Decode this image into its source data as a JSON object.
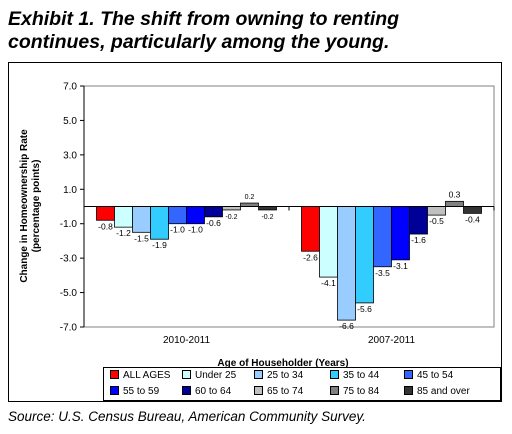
{
  "title_line1": "Exhibit 1. The shift from owning to renting",
  "title_line2": "continues, particularly among the young.",
  "source": "Source: U.S. Census Bureau, American Community Survey.",
  "chart_data": {
    "type": "bar",
    "ylabel": "Change in Homeownership Rate (percentage points)",
    "ylabel_line1": "Change in Homeownership Rate",
    "ylabel_line2": "(percentage points)",
    "xlabel": "Age of Householder (Years)",
    "categories": [
      "2010-2011",
      "2007-2011"
    ],
    "y_ticks": [
      "7.0",
      "5.0",
      "3.0",
      "1.0",
      "-1.0",
      "-3.0",
      "-5.0",
      "-7.0"
    ],
    "ylim": [
      -7.0,
      7.0
    ],
    "grid": false,
    "legend_position": "bottom",
    "series": [
      {
        "name": "ALL AGES",
        "color": "#ff0000",
        "values": [
          -0.8,
          -2.6
        ],
        "labels": [
          "-0.8",
          "-2.6"
        ]
      },
      {
        "name": "Under 25",
        "color": "#ccffff",
        "values": [
          -1.2,
          -4.1
        ],
        "labels": [
          "-1.2",
          "-4.1"
        ]
      },
      {
        "name": "25 to 34",
        "color": "#99ccff",
        "values": [
          -1.5,
          -6.6
        ],
        "labels": [
          "-1.5",
          "-6.6"
        ]
      },
      {
        "name": "35 to 44",
        "color": "#33ccff",
        "values": [
          -1.9,
          -5.6
        ],
        "labels": [
          "-1.9",
          "-5.6"
        ]
      },
      {
        "name": "45 to 54",
        "color": "#3366ff",
        "values": [
          -1.0,
          -3.5
        ],
        "labels": [
          "-1.0",
          "-3.5"
        ]
      },
      {
        "name": "55 to 59",
        "color": "#0000ff",
        "values": [
          -1.0,
          -3.1
        ],
        "labels": [
          "-1.0",
          "-3.1"
        ]
      },
      {
        "name": "60 to 64",
        "color": "#000099",
        "values": [
          -0.6,
          -1.6
        ],
        "labels": [
          "-0.6",
          "-1.6"
        ]
      },
      {
        "name": "65 to 74",
        "color": "#c0c0c0",
        "values": [
          -0.2,
          -0.5
        ],
        "labels": [
          "-0.2",
          "-0.5"
        ]
      },
      {
        "name": "75 to 84",
        "color": "#808080",
        "values": [
          0.2,
          0.3
        ],
        "labels": [
          "0.2",
          "0.3"
        ]
      },
      {
        "name": "85 and over",
        "color": "#333333",
        "values": [
          -0.2,
          -0.4
        ],
        "labels": [
          "-0.2",
          "-0.4"
        ]
      }
    ]
  }
}
